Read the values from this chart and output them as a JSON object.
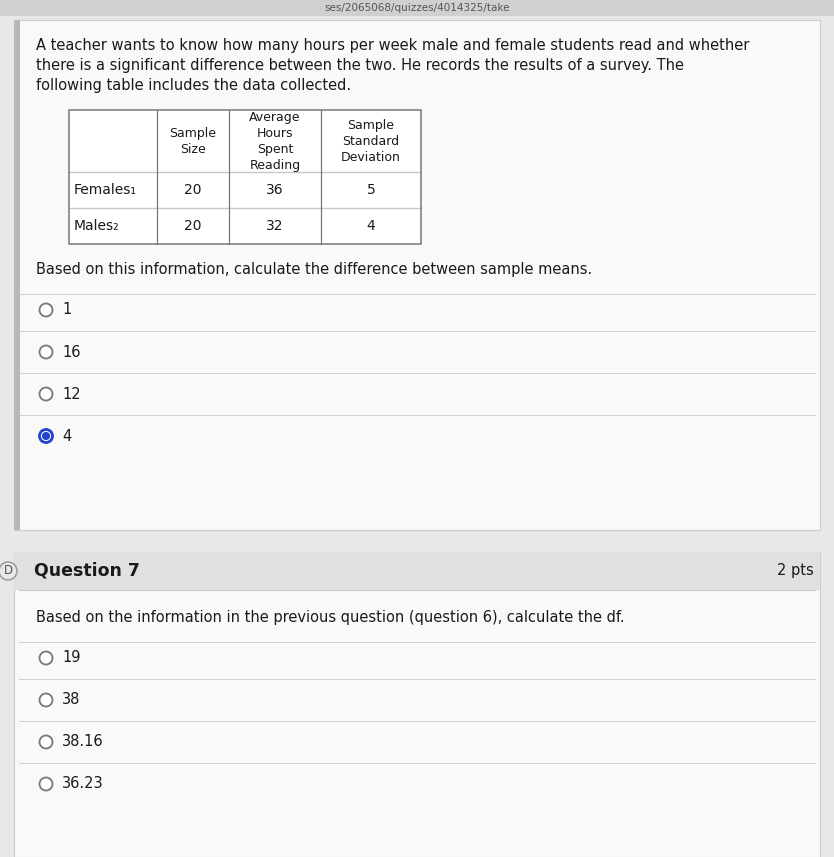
{
  "bg_color": "#e8e8e8",
  "card_color": "#f9f9f9",
  "url_text": "ses/2065068/quizzes/4014325/take",
  "paragraph_text": "A teacher wants to know how many hours per week male and female students read and whether\nthere is a significant difference between the two. He records the results of a survey. The\nfollowing table includes the data collected.",
  "table_rows": [
    [
      "Females₁",
      "20",
      "36",
      "5"
    ],
    [
      "Males₂",
      "20",
      "32",
      "4"
    ]
  ],
  "question_instruction": "Based on this information, calculate the difference between sample means.",
  "options_q6": [
    {
      "label": "1",
      "selected": false
    },
    {
      "label": "16",
      "selected": false
    },
    {
      "label": "12",
      "selected": false
    },
    {
      "label": "4",
      "selected": true
    }
  ],
  "question7_header": "Question 7",
  "question7_pts": "2 pts",
  "question7_text": "Based on the information in the previous question (question 6), calculate the df.",
  "options_q7": [
    {
      "label": "19",
      "selected": false
    },
    {
      "label": "38",
      "selected": false
    },
    {
      "label": "38.16",
      "selected": false
    },
    {
      "label": "36.23",
      "selected": false
    }
  ],
  "divider_color": "#c8c8c8",
  "selected_radio_color": "#2244cc",
  "selected_radio_outer": "#2244cc",
  "unselected_radio_color": "#ffffff",
  "radio_border_color": "#777777",
  "table_border_color": "#777777",
  "text_color": "#1a1a1a",
  "question7_bg": "#e0e0e0",
  "card_border_color": "#cccccc",
  "url_bar_color": "#d0d0d0",
  "url_text_color": "#555555"
}
